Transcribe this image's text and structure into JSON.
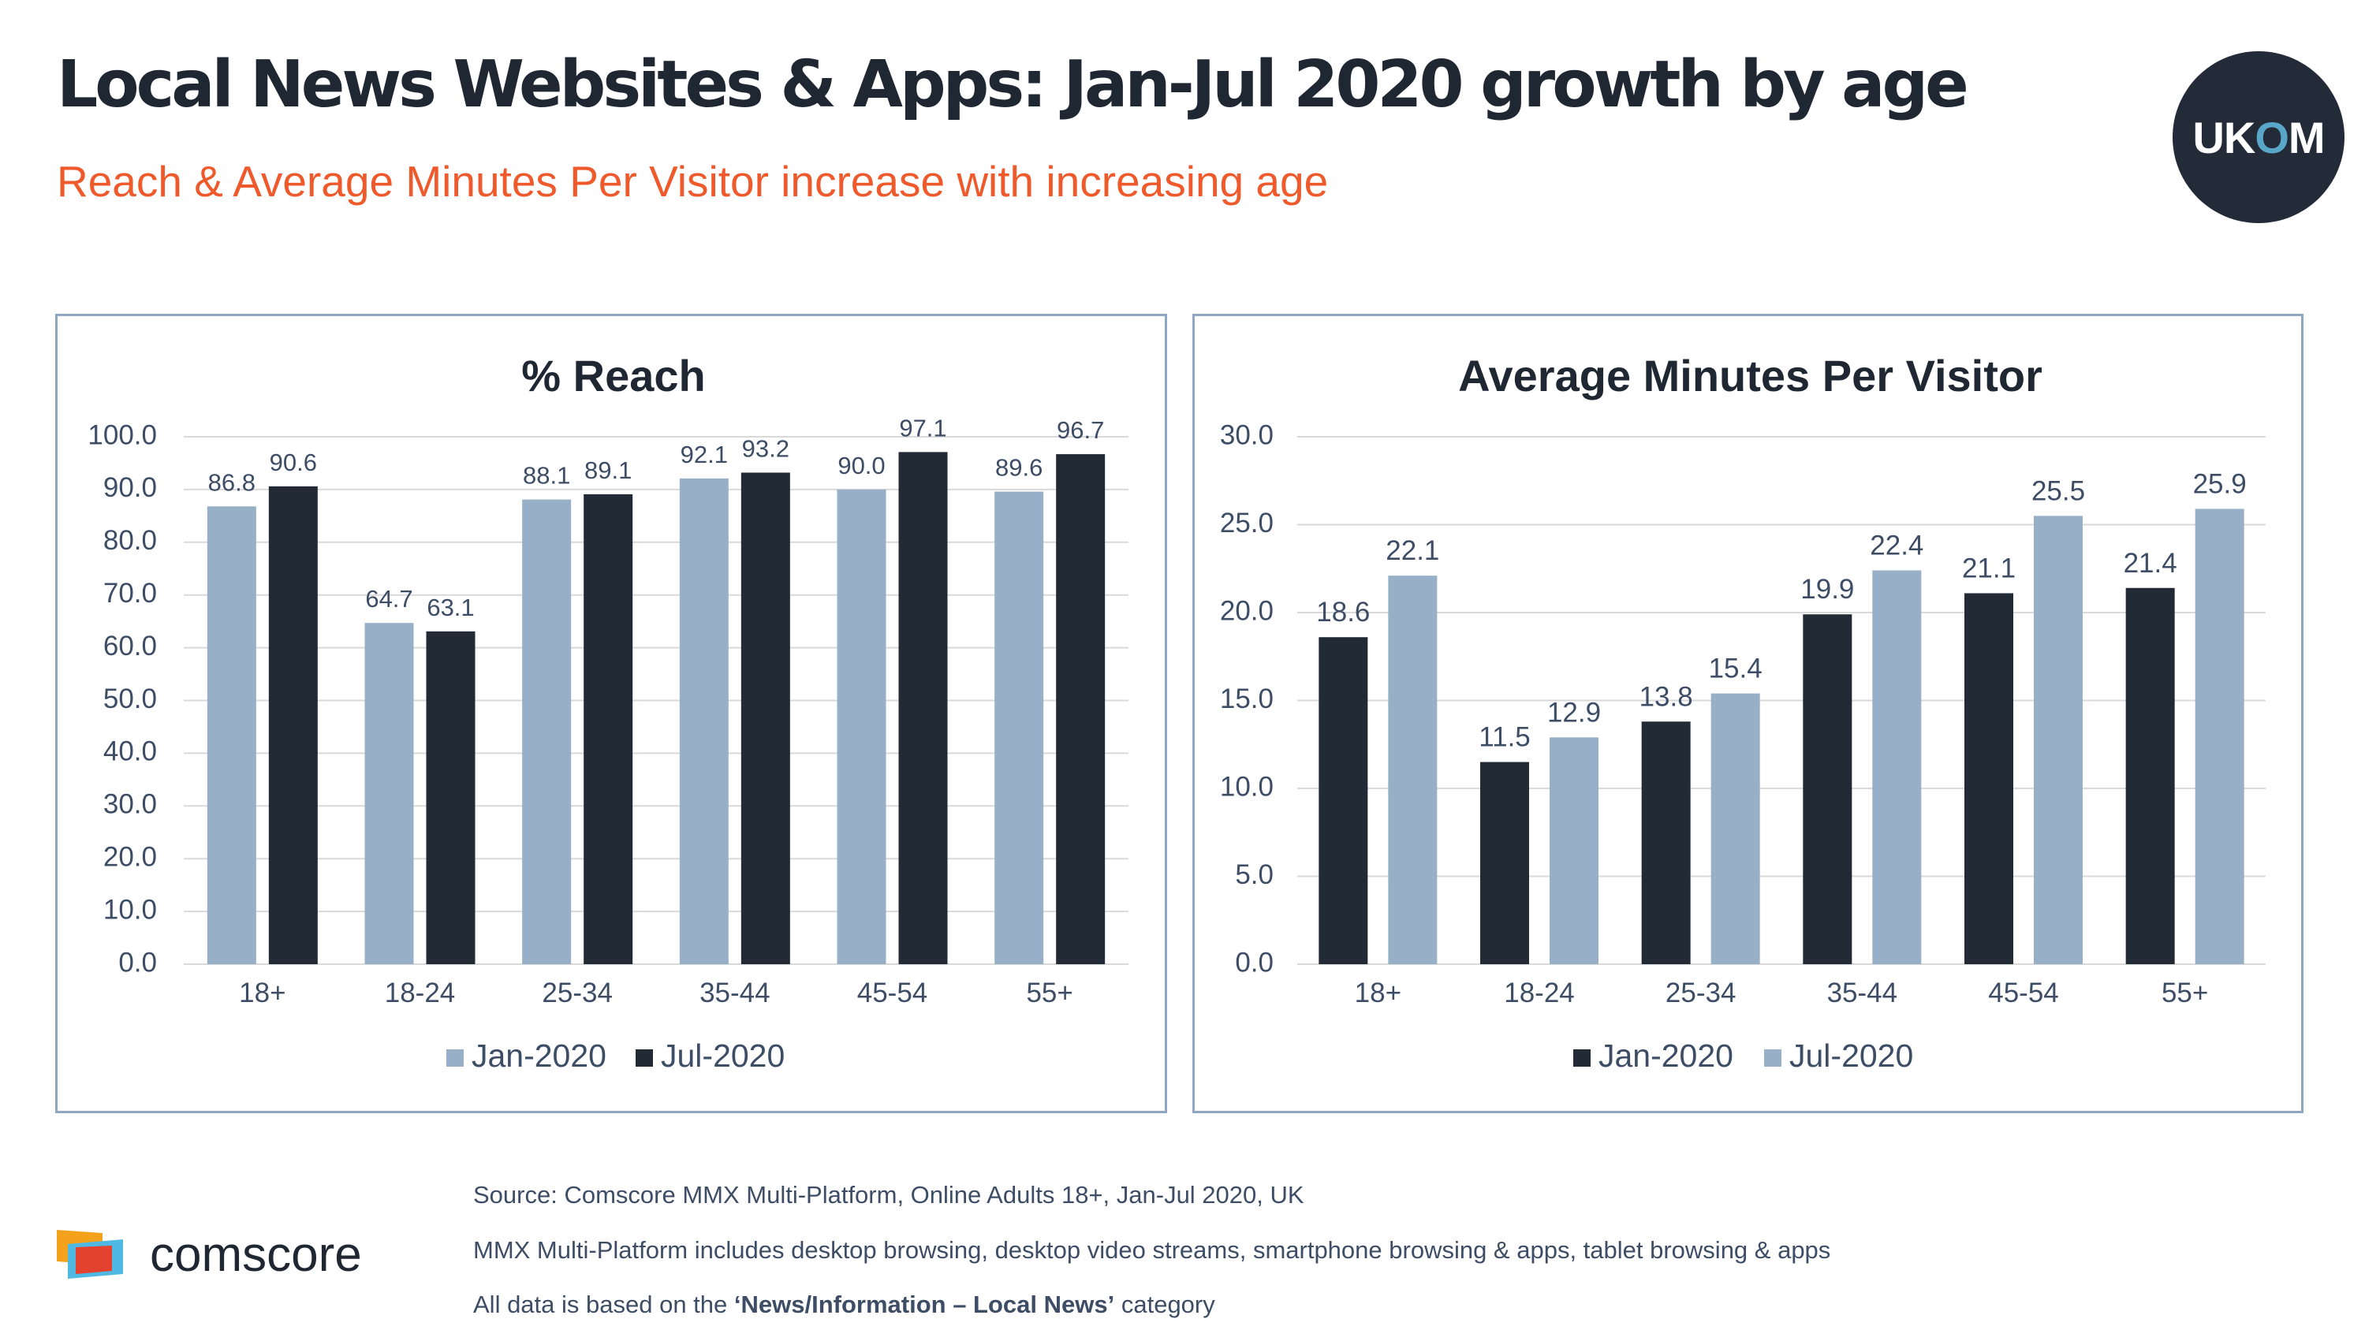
{
  "header": {
    "title": "Local News Websites & Apps: Jan-Jul 2020 growth by age",
    "subtitle": "Reach & Average Minutes Per Visitor increase with increasing age"
  },
  "logo": {
    "ukom_uk": "UK",
    "ukom_o": "O",
    "ukom_m": "M",
    "comscore": "comscore"
  },
  "footer": {
    "source": "Source: Comscore MMX Multi-Platform, Online Adults 18+, Jan-Jul 2020, UK",
    "note": "MMX Multi-Platform includes desktop browsing, desktop video streams, smartphone browsing & apps, tablet browsing & apps",
    "category_prefix": "All data is based on the ",
    "category_name": "‘News/Information – Local News’",
    "category_suffix": " category"
  },
  "colors": {
    "light": "#97afc7",
    "dark": "#222a36",
    "accent": "#ef5a2c",
    "grid": "#d9d9d9"
  },
  "chart_data": [
    {
      "type": "bar",
      "title": "% Reach",
      "categories": [
        "18+",
        "18-24",
        "25-34",
        "35-44",
        "45-54",
        "55+"
      ],
      "series": [
        {
          "name": "Jan-2020",
          "color": "#97afc7",
          "values": [
            86.8,
            64.7,
            88.1,
            92.1,
            90.0,
            89.6
          ]
        },
        {
          "name": "Jul-2020",
          "color": "#222a36",
          "values": [
            90.6,
            63.1,
            89.1,
            93.2,
            97.1,
            96.7
          ]
        }
      ],
      "ylim": [
        0,
        100
      ],
      "yticks": [
        "0.0",
        "10.0",
        "20.0",
        "30.0",
        "40.0",
        "50.0",
        "60.0",
        "70.0",
        "80.0",
        "90.0",
        "100.0"
      ],
      "grid": true,
      "legend": "bottom"
    },
    {
      "type": "bar",
      "title": "Average Minutes Per Visitor",
      "categories": [
        "18+",
        "18-24",
        "25-34",
        "35-44",
        "45-54",
        "55+"
      ],
      "series": [
        {
          "name": "Jan-2020",
          "color": "#222a36",
          "values": [
            18.6,
            11.5,
            13.8,
            19.9,
            21.1,
            21.4
          ]
        },
        {
          "name": "Jul-2020",
          "color": "#97afc7",
          "values": [
            22.1,
            12.9,
            15.4,
            22.4,
            25.5,
            25.9
          ]
        }
      ],
      "ylim": [
        0,
        30
      ],
      "yticks": [
        "0.0",
        "5.0",
        "10.0",
        "15.0",
        "20.0",
        "25.0",
        "30.0"
      ],
      "grid": true,
      "legend": "bottom"
    }
  ]
}
